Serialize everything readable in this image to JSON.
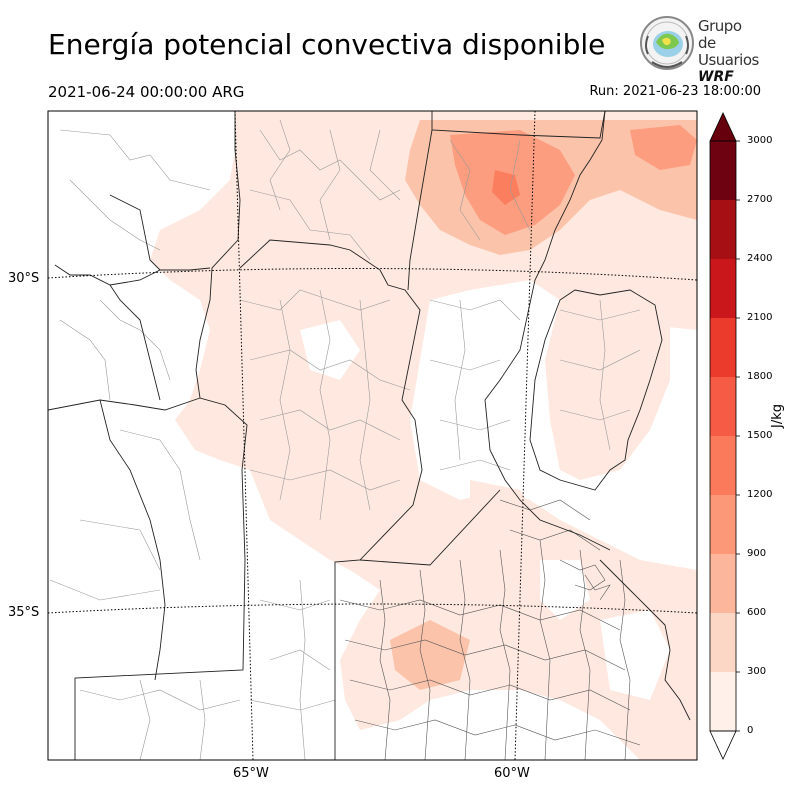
{
  "header": {
    "title": "Energía potencial convectiva disponible",
    "valid_time": "2021-06-24 00:00:00 ARG",
    "run_time": "Run: 2021-06-23 18:00:00"
  },
  "logo": {
    "line1": "Grupo de",
    "line2": "Usuarios",
    "line3": "WRF"
  },
  "map": {
    "lat_labels": [
      "30°S",
      "35°S"
    ],
    "lon_labels": [
      "65°W",
      "60°W"
    ]
  },
  "colorbar": {
    "unit": "J/kg",
    "ticks": [
      "0",
      "300",
      "600",
      "900",
      "1200",
      "1500",
      "1800",
      "2100",
      "2400",
      "2700",
      "3000"
    ],
    "colors": [
      "#fff5f0",
      "#fee0d2",
      "#fcbba1",
      "#fc9272",
      "#fb6a4a",
      "#ef3b2c",
      "#cb181d",
      "#a50f15",
      "#a50f15",
      "#67000d"
    ]
  }
}
